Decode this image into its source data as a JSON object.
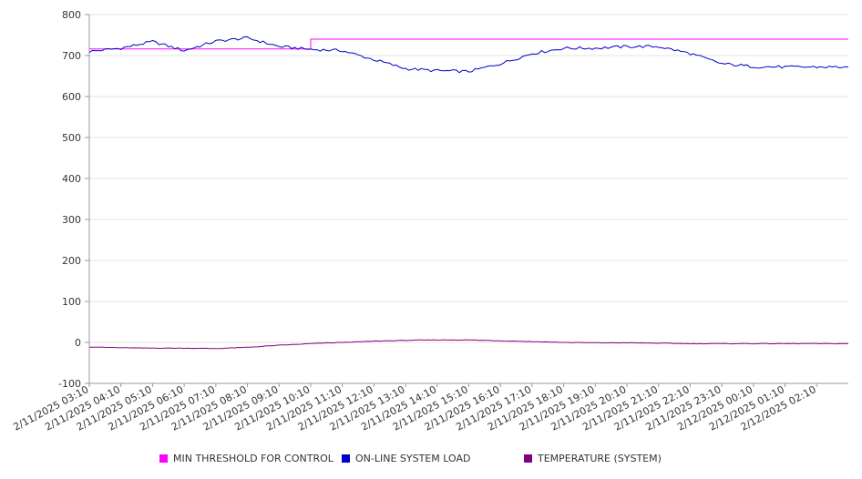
{
  "chart_data": {
    "type": "line",
    "title": "",
    "xlabel": "",
    "ylabel": "",
    "ylim": [
      -100,
      800
    ],
    "yticks": [
      -100,
      0,
      100,
      200,
      300,
      400,
      500,
      600,
      700,
      800
    ],
    "grid": true,
    "legend_position": "bottom",
    "x": [
      "2/11/2025 03:10",
      "2/11/2025 04:10",
      "2/11/2025 05:10",
      "2/11/2025 06:10",
      "2/11/2025 07:10",
      "2/11/2025 08:10",
      "2/11/2025 09:10",
      "2/11/2025 10:10",
      "2/11/2025 11:10",
      "2/11/2025 12:10",
      "2/11/2025 13:10",
      "2/11/2025 14:10",
      "2/11/2025 15:10",
      "2/11/2025 16:10",
      "2/11/2025 17:10",
      "2/11/2025 18:10",
      "2/11/2025 19:10",
      "2/11/2025 20:10",
      "2/11/2025 21:10",
      "2/11/2025 22:10",
      "2/11/2025 23:10",
      "2/12/2025 00:10",
      "2/12/2025 01:10",
      "2/12/2025 02:10"
    ],
    "series": [
      {
        "name": "MIN THRESHOLD FOR CONTROL",
        "color": "#ff00ff",
        "values": [
          716,
          716,
          716,
          716,
          716,
          716,
          716,
          740,
          740,
          740,
          740,
          740,
          740,
          740,
          740,
          740,
          740,
          740,
          740,
          740,
          740,
          740,
          740,
          740
        ]
      },
      {
        "name": "ON-LINE SYSTEM LOAD",
        "color": "#0000cc",
        "values": [
          710,
          718,
          734,
          712,
          735,
          743,
          722,
          715,
          712,
          690,
          668,
          663,
          661,
          680,
          705,
          718,
          718,
          722,
          722,
          705,
          680,
          673,
          672,
          672
        ]
      },
      {
        "name": "TEMPERATURE (SYSTEM)",
        "color": "#800080",
        "values": [
          -11,
          -13,
          -14,
          -14,
          -15,
          -12,
          -7,
          -3,
          0,
          3,
          5,
          6,
          6,
          4,
          2,
          0,
          -1,
          -1,
          -2,
          -3,
          -3,
          -3,
          -3,
          -3
        ]
      }
    ]
  }
}
